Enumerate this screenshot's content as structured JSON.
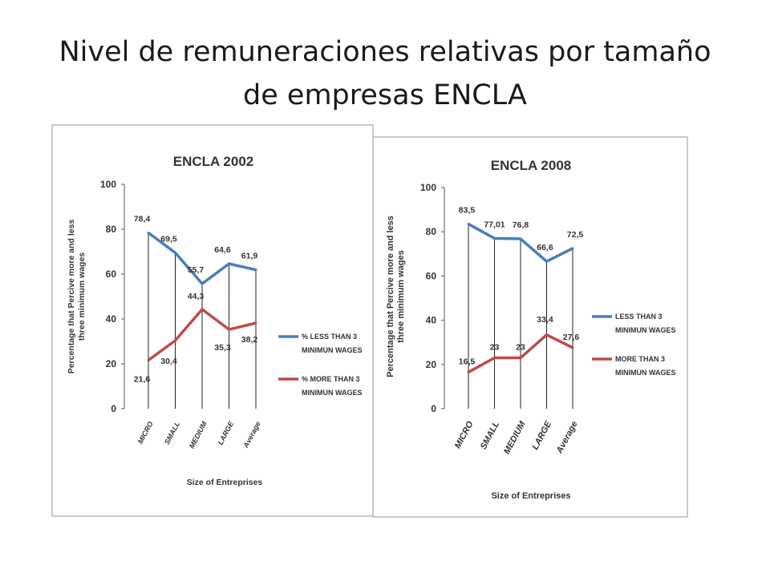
{
  "slide_title": "Nivel de remuneraciones relativas por tamaño de empresas  ENCLA",
  "chart_data": [
    {
      "type": "line",
      "title": "ENCLA 2002",
      "xlabel": "Size of Entreprises",
      "ylabel": "Percentage  that Percive more and less three minimum wages",
      "ylim": [
        0,
        100
      ],
      "yticks": [
        0,
        20,
        40,
        60,
        80,
        100
      ],
      "categories": [
        "MICRO",
        "SMALL",
        "MEDIUM",
        "LARGE",
        "Average"
      ],
      "series": [
        {
          "name": "% LESS THAN 3 MINIMUN WAGES",
          "color": "#4a7ebb",
          "values": [
            78.4,
            69.5,
            55.7,
            64.6,
            61.9
          ],
          "labels": [
            "78,4",
            "69,5",
            "55,7",
            "64,6",
            "61,9"
          ]
        },
        {
          "name": "% MORE THAN 3 MINIMUN WAGES",
          "color": "#be4b48",
          "values": [
            21.6,
            30.4,
            44.3,
            35.3,
            38.2
          ],
          "labels": [
            "21,6",
            "30,4",
            "44,3",
            "35,3",
            "38,2"
          ]
        }
      ],
      "grid": "vertical",
      "legend": "right"
    },
    {
      "type": "line",
      "title": "ENCLA 2008",
      "xlabel": "Size of Entreprises",
      "ylabel": "Percentage  that Percive more and less three minimum wages",
      "ylim": [
        0,
        100
      ],
      "yticks": [
        0,
        20,
        40,
        60,
        80,
        100
      ],
      "categories": [
        "MICRO",
        "SMALL",
        "MEDIUM",
        "LARGE",
        "Average"
      ],
      "series": [
        {
          "name": "LESS  THAN 3 MINIMUN WAGES",
          "color": "#4a7ebb",
          "values": [
            83.5,
            77.01,
            76.8,
            66.6,
            72.5
          ],
          "labels": [
            "83,5",
            "77,01",
            "76,8",
            "66,6",
            "72,5"
          ]
        },
        {
          "name": "MORE THAN 3 MINIMUN WAGES",
          "color": "#be4b48",
          "values": [
            16.5,
            23,
            23,
            33.4,
            27.6
          ],
          "labels": [
            "16,5",
            "23",
            "23",
            "33,4",
            "27,6"
          ]
        }
      ],
      "grid": "vertical",
      "legend": "right"
    }
  ]
}
